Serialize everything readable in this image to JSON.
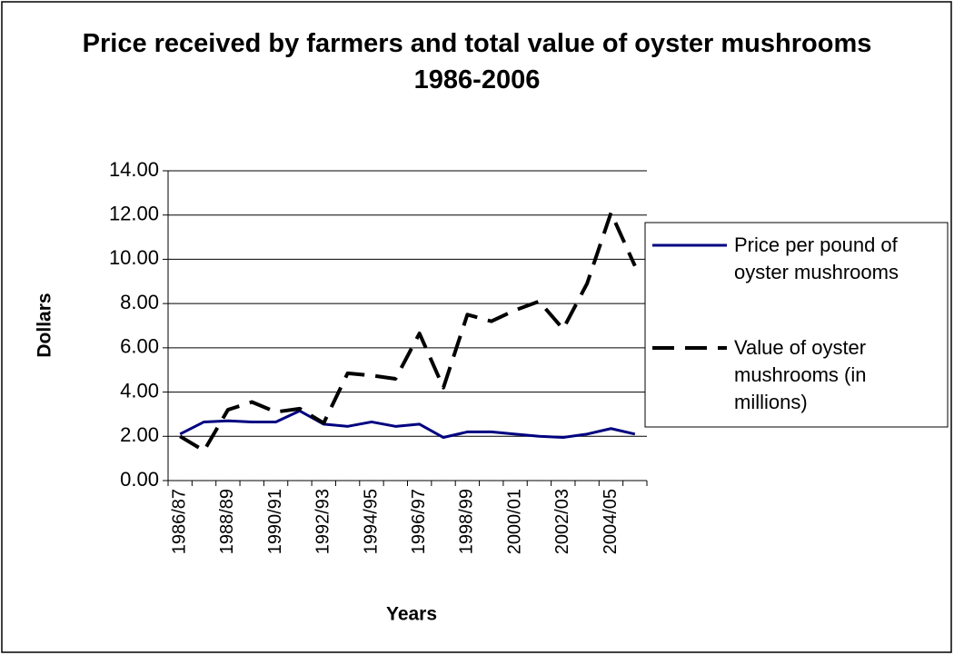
{
  "chart_data": {
    "type": "line",
    "title": "Price received by farmers and total value of oyster mushrooms 1986-2006",
    "x_label": "Years",
    "y_label": "Dollars",
    "categories": [
      "1986/87",
      null,
      "1988/89",
      null,
      "1990/91",
      null,
      "1992/93",
      null,
      "1994/95",
      null,
      "1996/97",
      null,
      "1998/99",
      null,
      "2000/01",
      null,
      "2002/03",
      null,
      "2004/05",
      null
    ],
    "series": [
      {
        "name": "Price per pound of oyster mushrooms",
        "color": "#000080",
        "dash": false,
        "values": [
          2.1,
          2.65,
          2.7,
          2.65,
          2.65,
          3.15,
          2.55,
          2.45,
          2.65,
          2.45,
          2.55,
          1.95,
          2.2,
          2.2,
          2.1,
          2.0,
          1.95,
          2.1,
          2.35,
          2.1
        ]
      },
      {
        "name": "Value of oyster mushrooms (in millions)",
        "color": "#000000",
        "dash": true,
        "values": [
          2.0,
          1.35,
          3.2,
          3.55,
          3.1,
          3.25,
          2.6,
          4.85,
          4.75,
          4.6,
          6.65,
          4.2,
          7.5,
          7.2,
          7.7,
          8.1,
          6.85,
          8.9,
          12.1,
          9.7
        ]
      }
    ],
    "ylim": [
      0,
      14
    ],
    "yticks": [
      {
        "value": 0,
        "label": "0.00"
      },
      {
        "value": 2,
        "label": "2.00"
      },
      {
        "value": 4,
        "label": "4.00"
      },
      {
        "value": 6,
        "label": "6.00"
      },
      {
        "value": 8,
        "label": "8.00"
      },
      {
        "value": 10,
        "label": "10.00"
      },
      {
        "value": 12,
        "label": "12.00"
      },
      {
        "value": 14,
        "label": "14.00"
      }
    ],
    "grid": true,
    "legend": "right"
  }
}
